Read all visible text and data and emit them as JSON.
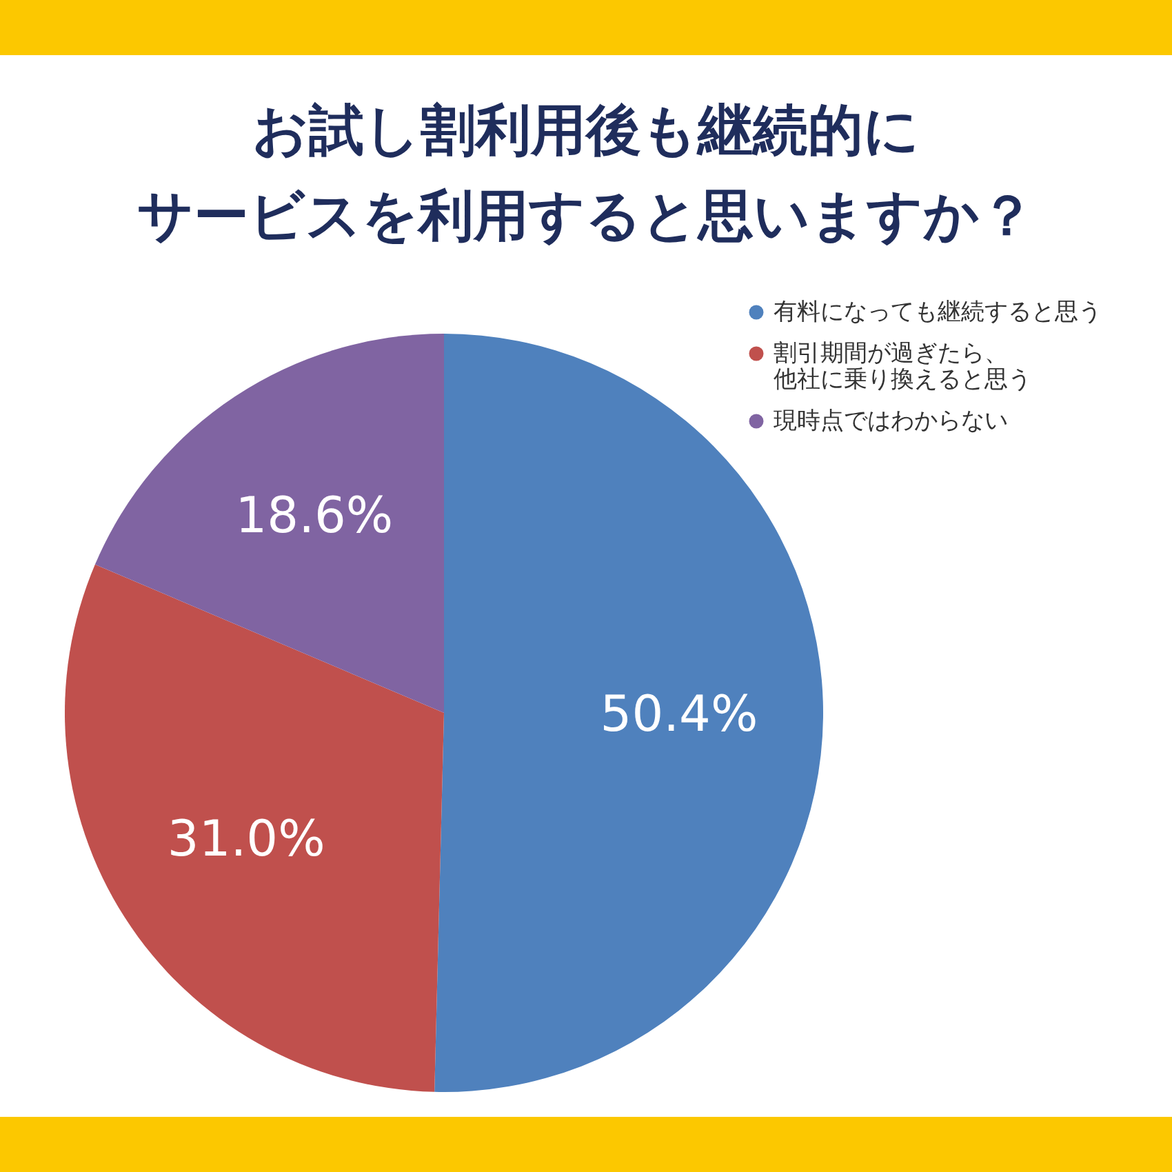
{
  "chart_data": {
    "type": "pie",
    "title": "お試し割利用後も継続的にサービスを利用すると思いますか？",
    "categories": [
      "有料になっても継続すると思う",
      "割引期間が過ぎたら、他社に乗り換えると思う",
      "現時点ではわからない"
    ],
    "values": [
      50.4,
      31.0,
      18.6
    ],
    "colors": [
      "#4f81bd",
      "#c0504d",
      "#8064a2"
    ],
    "value_labels": [
      "50.4%",
      "31.0%",
      "18.6%"
    ],
    "legend": "top right"
  }
}
